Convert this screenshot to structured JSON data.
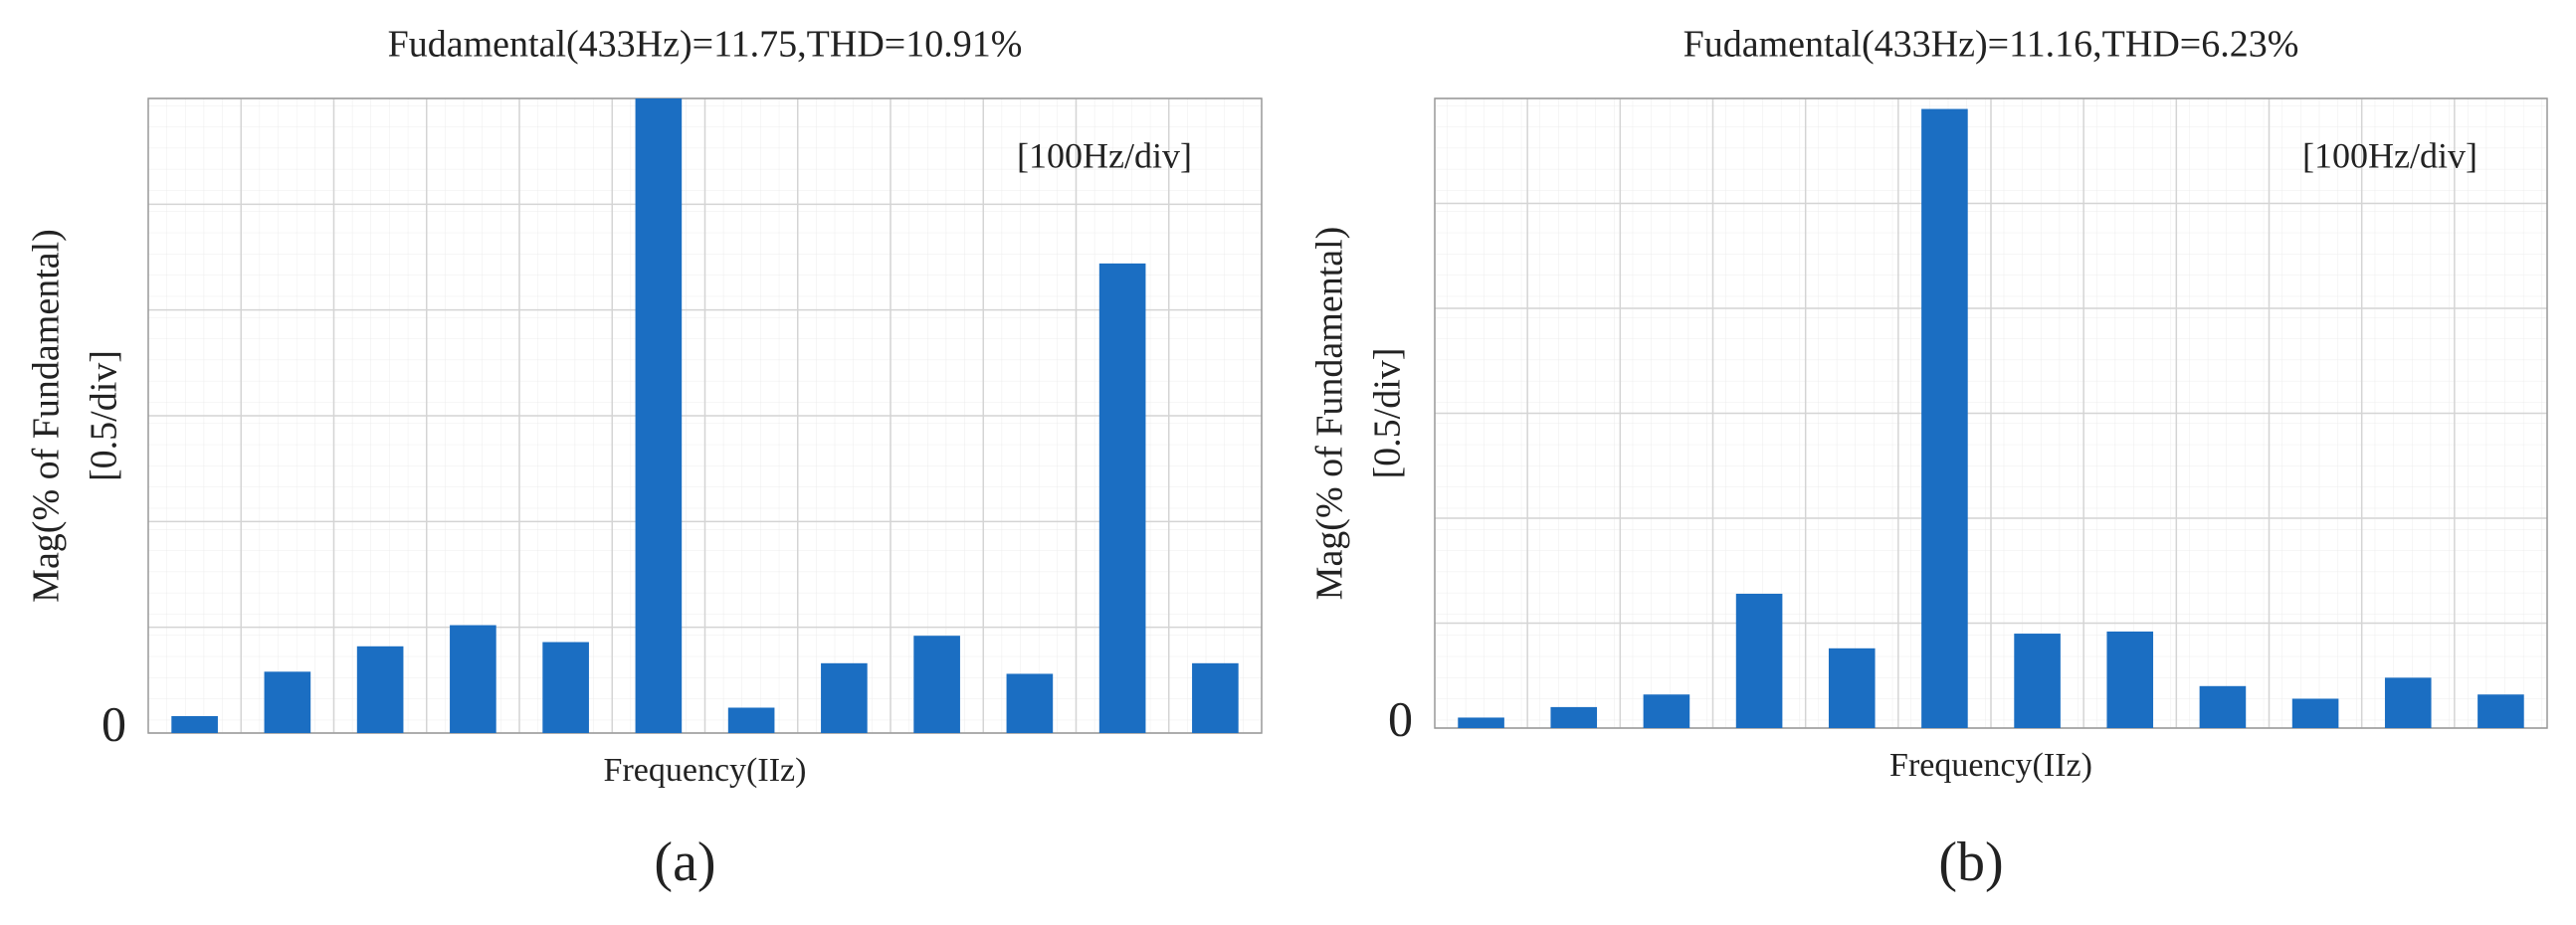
{
  "chart_data": [
    {
      "type": "bar",
      "title": "Fudamental(433Hz)=11.75,THD=10.91%",
      "panel": "(a)",
      "y_label": [
        "Mag(% of Fundamental)",
        "[0.5/div]"
      ],
      "x_label": "Frequency(IIz)",
      "annotation": "[100Hz/div]",
      "categories": [
        null,
        null,
        null,
        null,
        null,
        null,
        null,
        null,
        null,
        null,
        null,
        null
      ],
      "values": [
        0.08,
        0.29,
        0.41,
        0.51,
        0.43,
        3.0,
        0.12,
        0.33,
        0.46,
        0.28,
        2.22,
        0.33
      ],
      "color": "#1b6ec2",
      "ylim": [
        0,
        3
      ],
      "yticks": [
        0
      ],
      "ygrid": [
        0,
        0.5,
        1,
        1.5,
        2,
        2.5,
        3
      ],
      "grid": true
    },
    {
      "type": "bar",
      "title": "Fudamental(433Hz)=11.16,THD=6.23%",
      "panel": "(b)",
      "y_label": [
        "Mag(% of Fundamental)",
        "[0.5/div]"
      ],
      "x_label": "Frequency(IIz)",
      "annotation": "[100Hz/div]",
      "categories": [
        null,
        null,
        null,
        null,
        null,
        null,
        null,
        null,
        null,
        null,
        null,
        null
      ],
      "values": [
        0.05,
        0.1,
        0.16,
        0.64,
        0.38,
        2.95,
        0.45,
        0.46,
        0.2,
        0.14,
        0.24,
        0.16
      ],
      "color": "#1b6ec2",
      "ylim": [
        0,
        3
      ],
      "yticks": [
        0
      ],
      "ygrid": [
        0,
        0.5,
        1,
        1.5,
        2,
        2.5,
        3
      ],
      "grid": true
    }
  ]
}
